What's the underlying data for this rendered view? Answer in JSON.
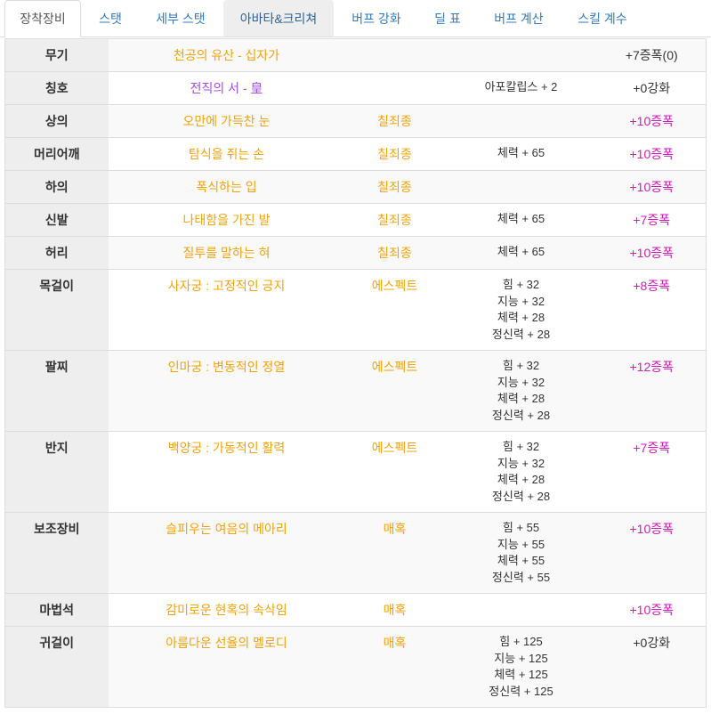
{
  "tabs": [
    {
      "label": "장착장비",
      "active": true
    },
    {
      "label": "스탯"
    },
    {
      "label": "세부 스탯"
    },
    {
      "label": "아바타&크리쳐",
      "highlighted": true
    },
    {
      "label": "버프 강화"
    },
    {
      "label": "딜 표"
    },
    {
      "label": "버프 계산"
    },
    {
      "label": "스킬 계수"
    }
  ],
  "colors": {
    "set": "#eda30c"
  },
  "equipment": [
    {
      "slot": "무기",
      "name": "천공의 유산 - 십자가",
      "name_color": "#eda30c",
      "stats": [],
      "upgrade": "+7증폭(0)",
      "upgrade_color": "#333333"
    },
    {
      "slot": "칭호",
      "name": "전직의 서 - 皇",
      "name_color": "#a34ee0",
      "stats": [
        "아포칼립스 + 2"
      ],
      "upgrade": "+0강화",
      "upgrade_color": "#333333"
    },
    {
      "slot": "상의",
      "name": "오만에 가득찬 눈",
      "name_color": "#eda30c",
      "set": "칠죄종",
      "stats": [],
      "upgrade": "+10증폭",
      "upgrade_color": "#c81eb4"
    },
    {
      "slot": "머리어깨",
      "name": "탐식을 쥐는 손",
      "name_color": "#eda30c",
      "set": "칠죄종",
      "stats": [
        "체력 + 65"
      ],
      "upgrade": "+10증폭",
      "upgrade_color": "#c81eb4"
    },
    {
      "slot": "하의",
      "name": "폭식하는 입",
      "name_color": "#eda30c",
      "set": "칠죄종",
      "stats": [],
      "upgrade": "+10증폭",
      "upgrade_color": "#c81eb4"
    },
    {
      "slot": "신발",
      "name": "나태함을 가진 발",
      "name_color": "#eda30c",
      "set": "칠죄종",
      "stats": [
        "체력 + 65"
      ],
      "upgrade": "+7증폭",
      "upgrade_color": "#c81eb4"
    },
    {
      "slot": "허리",
      "name": "질투를 말하는 혀",
      "name_color": "#eda30c",
      "set": "칠죄종",
      "stats": [
        "체력 + 65"
      ],
      "upgrade": "+10증폭",
      "upgrade_color": "#c81eb4"
    },
    {
      "slot": "목걸이",
      "name": "사자궁 : 고정적인 긍지",
      "name_color": "#eda30c",
      "set": "에스펙트",
      "stats": [
        "힘 + 32",
        "지능 + 32",
        "체력 + 28",
        "정신력 + 28"
      ],
      "upgrade": "+8증폭",
      "upgrade_color": "#c81eb4"
    },
    {
      "slot": "팔찌",
      "name": "인마궁 : 변동적인 정열",
      "name_color": "#eda30c",
      "set": "에스펙트",
      "stats": [
        "힘 + 32",
        "지능 + 32",
        "체력 + 28",
        "정신력 + 28"
      ],
      "upgrade": "+12증폭",
      "upgrade_color": "#c81eb4"
    },
    {
      "slot": "반지",
      "name": "백양궁 : 가동적인 활력",
      "name_color": "#eda30c",
      "set": "에스펙트",
      "stats": [
        "힘 + 32",
        "지능 + 32",
        "체력 + 28",
        "정신력 + 28"
      ],
      "upgrade": "+7증폭",
      "upgrade_color": "#c81eb4"
    },
    {
      "slot": "보조장비",
      "name": "슬피우는 여음의 메아리",
      "name_color": "#eda30c",
      "set": "매혹",
      "stats": [
        "힘 + 55",
        "지능 + 55",
        "체력 + 55",
        "정신력 + 55"
      ],
      "upgrade": "+10증폭",
      "upgrade_color": "#c81eb4"
    },
    {
      "slot": "마법석",
      "name": "감미로운 현혹의 속삭임",
      "name_color": "#eda30c",
      "set": "매혹",
      "stats": [],
      "upgrade": "+10증폭",
      "upgrade_color": "#c81eb4"
    },
    {
      "slot": "귀걸이",
      "name": "아름다운 선율의 멜로디",
      "name_color": "#eda30c",
      "set": "매혹",
      "stats": [
        "힘 + 125",
        "지능 + 125",
        "체력 + 125",
        "정신력 + 125"
      ],
      "upgrade": "+0강화",
      "upgrade_color": "#333333"
    }
  ]
}
